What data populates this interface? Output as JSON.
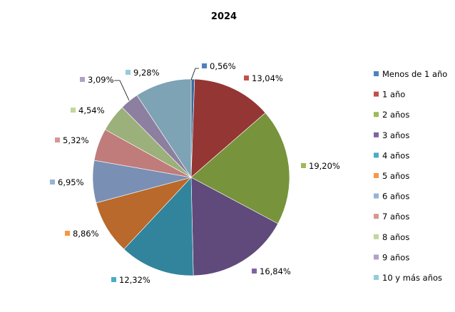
{
  "chart_data": {
    "type": "pie",
    "title": "2024",
    "categories": [
      "Menos de 1 año",
      "1 año",
      "2 años",
      "3 años",
      "4 años",
      "5 años",
      "6 años",
      "7 años",
      "8 años",
      "9 años",
      "10 y más años"
    ],
    "values": [
      0.56,
      13.04,
      19.2,
      16.84,
      12.32,
      8.86,
      6.95,
      5.32,
      4.54,
      3.09,
      9.28
    ],
    "data_labels": [
      "0,56%",
      "13,04%",
      "19,20%",
      "16,84%",
      "12,32%",
      "8,86%",
      "6,95%",
      "5,32%",
      "4,54%",
      "3,09%",
      "9,28%"
    ],
    "colors": [
      "#3C6A9E",
      "#943634",
      "#77933C",
      "#5F4A7B",
      "#31849B",
      "#B9692B",
      "#7A8FB4",
      "#C07B7B",
      "#9BB07A",
      "#8C7FA0",
      "#7DA3B4"
    ],
    "legend_colors": [
      "#4F81BD",
      "#C0504D",
      "#9BBB59",
      "#8064A2",
      "#4BACC6",
      "#F79646",
      "#95B3D7",
      "#D99694",
      "#C3D69B",
      "#B2A1C7",
      "#93CDDD"
    ],
    "legend_position": "right",
    "start_angle": "top, clockwise"
  }
}
